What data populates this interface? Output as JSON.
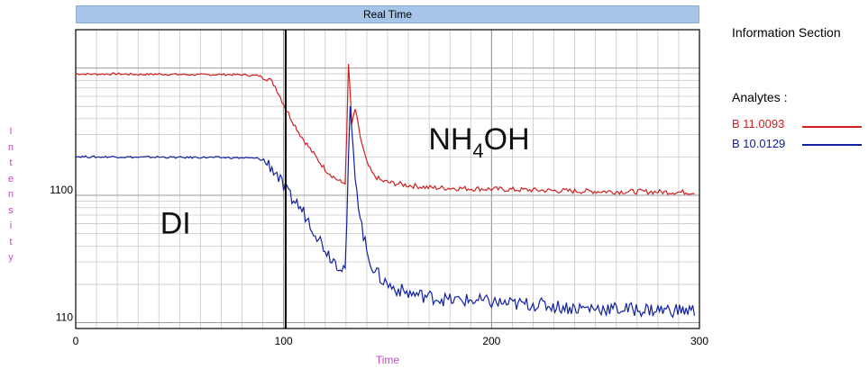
{
  "chart_data": {
    "type": "line",
    "title": "Real Time",
    "xlabel": "Time",
    "ylabel": "Intensity",
    "xlim": [
      0,
      300
    ],
    "ylim_log": [
      90,
      20000
    ],
    "x_ticks": [
      0,
      100,
      200,
      300
    ],
    "y_ticks": [
      110,
      1100
    ],
    "grid": true,
    "vertical_marker_x": 101,
    "annotations": [
      {
        "text": "DI",
        "x": 48,
        "y": 500
      },
      {
        "text": "NH",
        "sub": "4",
        "rest": "OH",
        "x": 194,
        "y": 2300
      }
    ],
    "series": [
      {
        "name": "B 11.0093",
        "color": "#d02020",
        "points": [
          [
            0,
            9000
          ],
          [
            10,
            8950
          ],
          [
            20,
            9000
          ],
          [
            30,
            8900
          ],
          [
            40,
            8950
          ],
          [
            50,
            8900
          ],
          [
            60,
            8850
          ],
          [
            70,
            8900
          ],
          [
            80,
            8850
          ],
          [
            88,
            8700
          ],
          [
            93,
            8200
          ],
          [
            96,
            7200
          ],
          [
            100,
            5200
          ],
          [
            104,
            3900
          ],
          [
            108,
            3000
          ],
          [
            112,
            2400
          ],
          [
            116,
            1950
          ],
          [
            120,
            1600
          ],
          [
            124,
            1400
          ],
          [
            128,
            1250
          ],
          [
            130,
            1280
          ],
          [
            131,
            12000
          ],
          [
            132,
            6500
          ],
          [
            133,
            3000
          ],
          [
            134,
            5200
          ],
          [
            135,
            4200
          ],
          [
            137,
            2800
          ],
          [
            140,
            1800
          ],
          [
            143,
            1450
          ],
          [
            147,
            1300
          ],
          [
            152,
            1250
          ],
          [
            160,
            1200
          ],
          [
            170,
            1150
          ],
          [
            180,
            1140
          ],
          [
            190,
            1130
          ],
          [
            200,
            1120
          ],
          [
            210,
            1110
          ],
          [
            220,
            1100
          ],
          [
            230,
            1090
          ],
          [
            240,
            1080
          ],
          [
            250,
            1075
          ],
          [
            260,
            1070
          ],
          [
            270,
            1070
          ],
          [
            280,
            1065
          ],
          [
            290,
            1060
          ],
          [
            298,
            1055
          ]
        ]
      },
      {
        "name": "B 10.0129",
        "color": "#1020a0",
        "points": [
          [
            0,
            2020
          ],
          [
            10,
            2000
          ],
          [
            20,
            2010
          ],
          [
            30,
            1990
          ],
          [
            40,
            2000
          ],
          [
            50,
            1980
          ],
          [
            60,
            1990
          ],
          [
            70,
            1980
          ],
          [
            80,
            1970
          ],
          [
            88,
            1950
          ],
          [
            93,
            1750
          ],
          [
            97,
            1450
          ],
          [
            100,
            1150
          ],
          [
            103,
            980
          ],
          [
            106,
            880
          ],
          [
            110,
            720
          ],
          [
            114,
            560
          ],
          [
            118,
            430
          ],
          [
            122,
            340
          ],
          [
            126,
            290
          ],
          [
            129,
            270
          ],
          [
            130,
            285
          ],
          [
            131,
            1500
          ],
          [
            132,
            5000
          ],
          [
            133,
            2600
          ],
          [
            135,
            1200
          ],
          [
            137,
            640
          ],
          [
            140,
            360
          ],
          [
            143,
            270
          ],
          [
            147,
            220
          ],
          [
            152,
            190
          ],
          [
            160,
            170
          ],
          [
            170,
            160
          ],
          [
            180,
            150
          ],
          [
            190,
            150
          ],
          [
            200,
            145
          ],
          [
            210,
            140
          ],
          [
            220,
            140
          ],
          [
            230,
            135
          ],
          [
            240,
            130
          ],
          [
            250,
            130
          ],
          [
            260,
            128
          ],
          [
            270,
            127
          ],
          [
            280,
            126
          ],
          [
            290,
            125
          ],
          [
            298,
            124
          ]
        ]
      }
    ]
  },
  "side_panel": {
    "title": "Information Section",
    "analytes_label": "Analytes :",
    "analytes": [
      "B 11.0093",
      "B 10.0129"
    ]
  },
  "ylabel_letters": [
    "I",
    "n",
    "t",
    "e",
    "n",
    "s",
    "i",
    "t",
    "y"
  ]
}
